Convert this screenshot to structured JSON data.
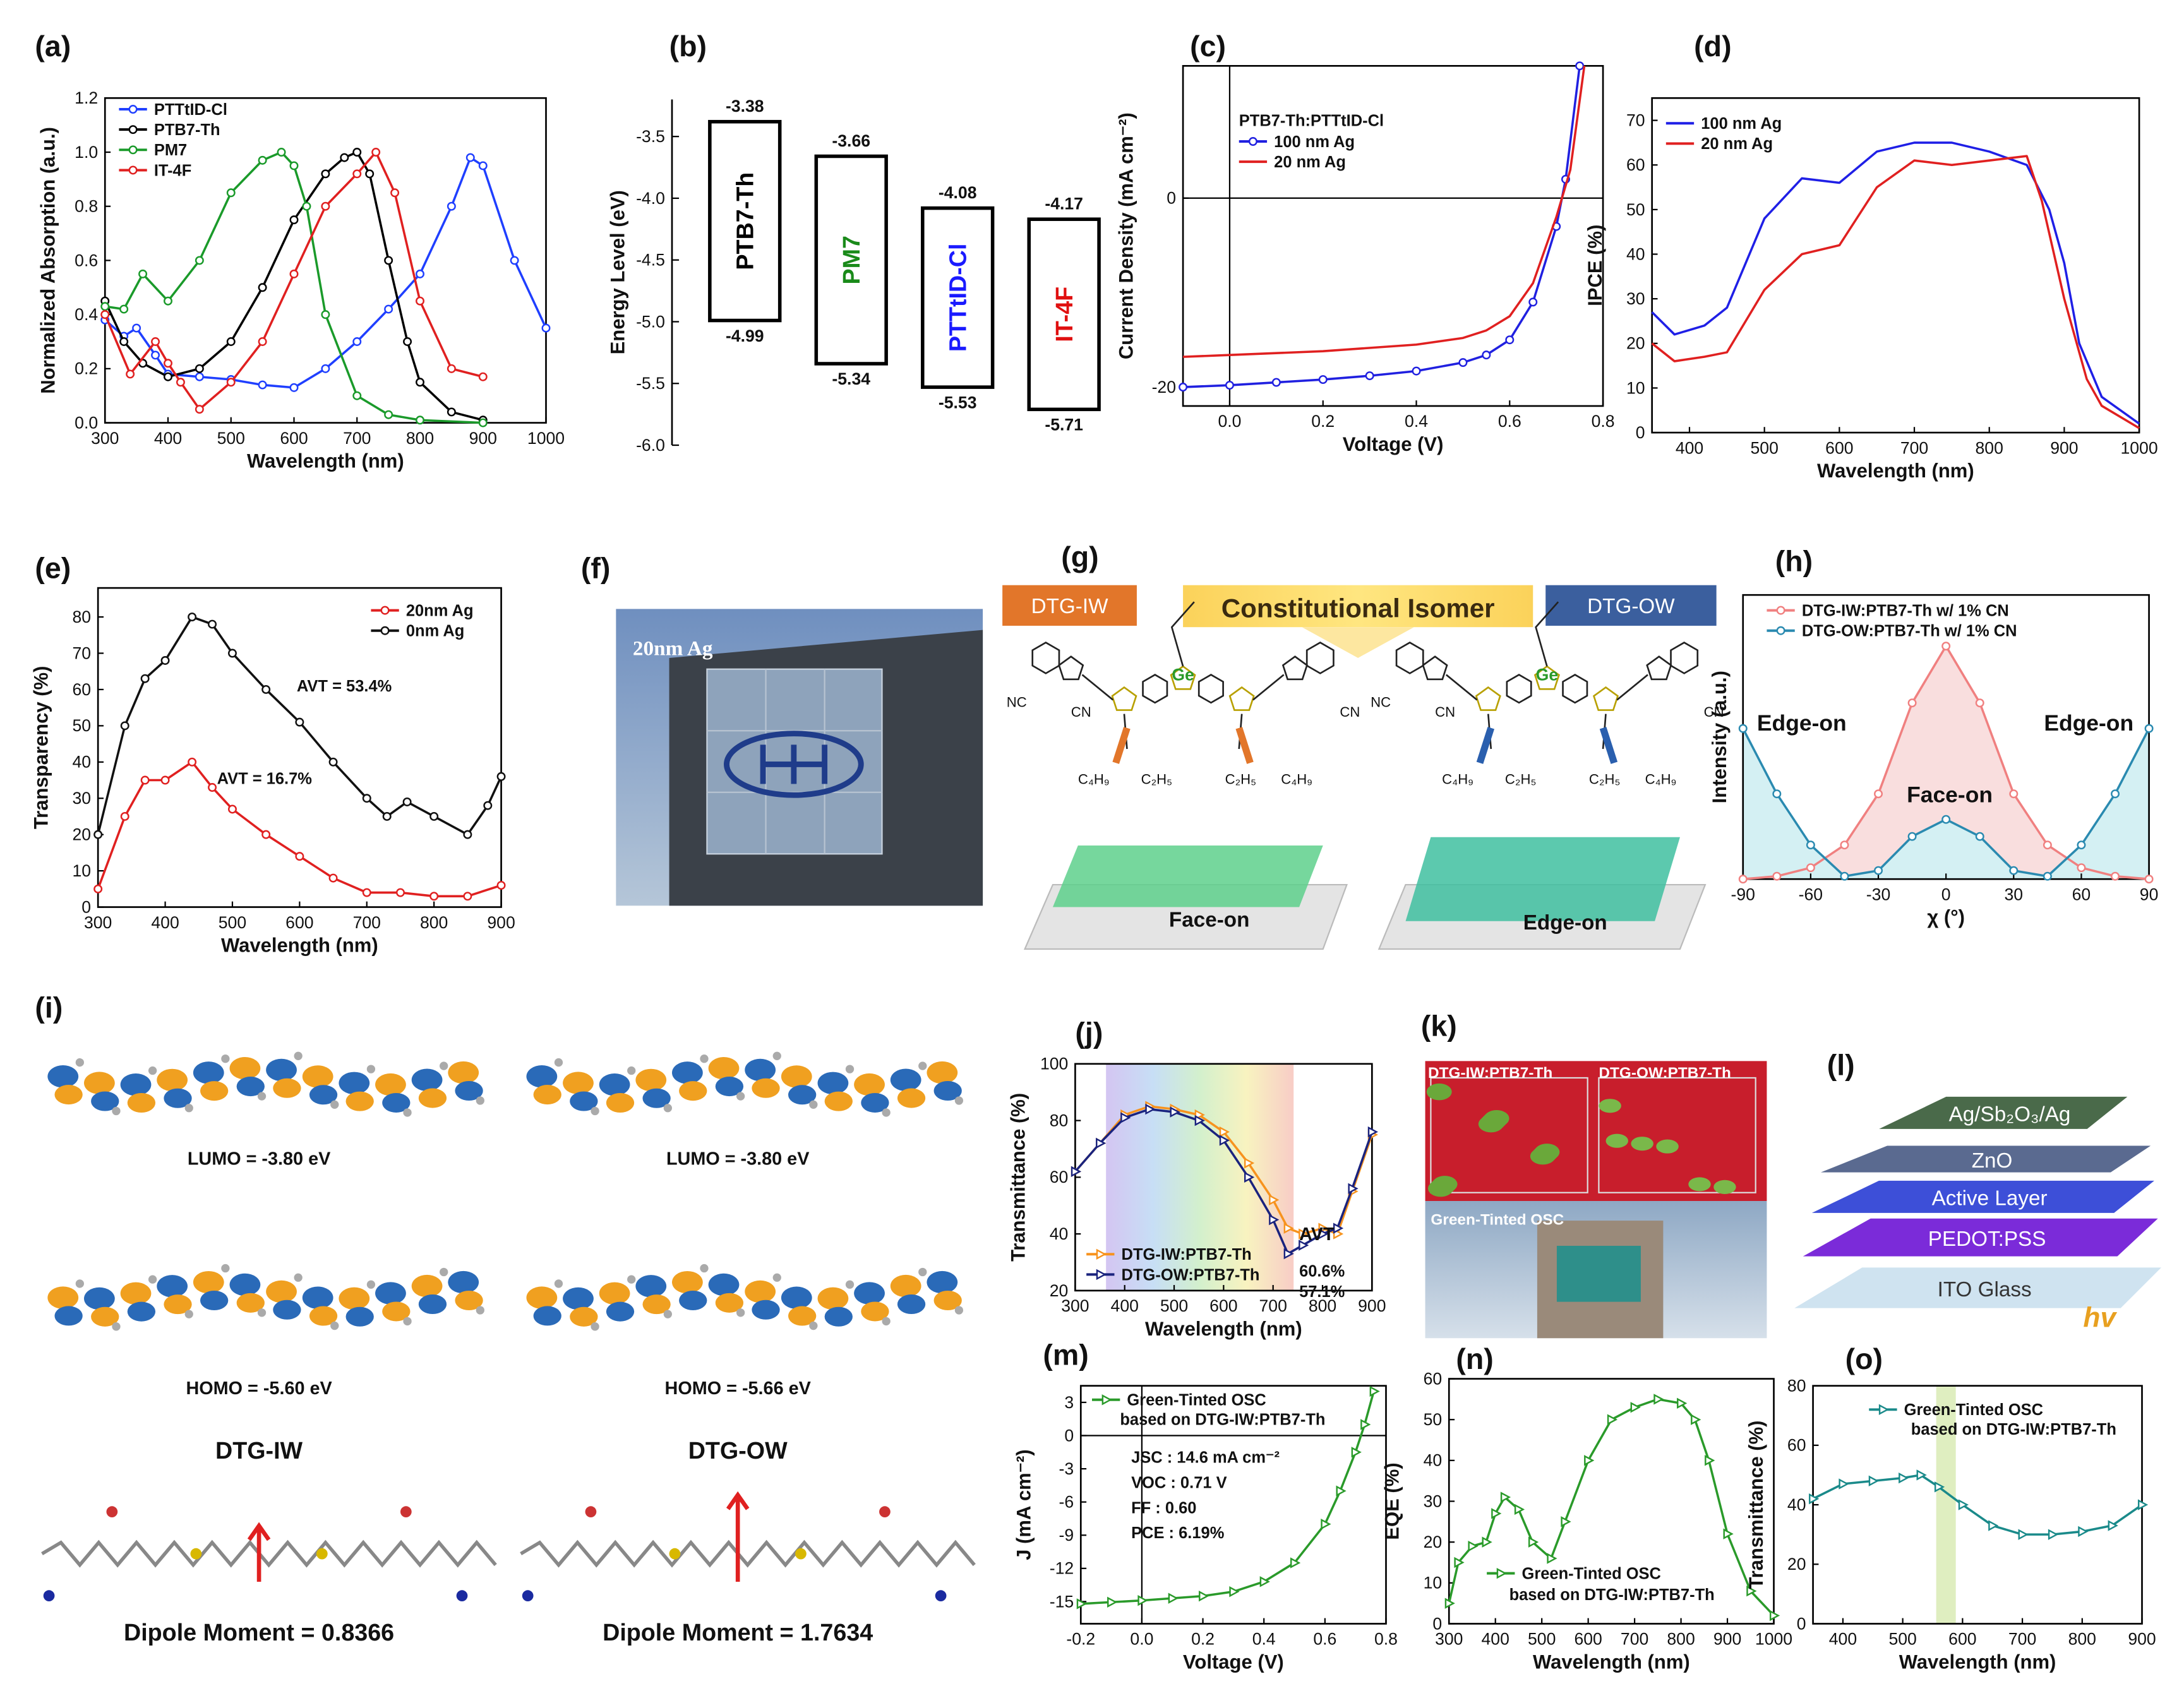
{
  "panel_labels": [
    "(a)",
    "(b)",
    "(c)",
    "(d)",
    "(e)",
    "(f)",
    "(g)",
    "(h)",
    "(i)",
    "(j)",
    "(k)",
    "(l)",
    "(m)",
    "(n)",
    "(o)"
  ],
  "chart_data": [
    {
      "type": "line",
      "xlabel": "Wavelength (nm)",
      "ylabel": "Normalized Absorption (a.u.)",
      "xlim": [
        300,
        1000
      ],
      "ylim": [
        0,
        1.2
      ],
      "xticks": [
        300,
        400,
        500,
        600,
        700,
        800,
        900,
        1000
      ],
      "yticks": [
        {
          "value": 0,
          "label": "0.0"
        },
        0.2,
        0.4,
        0.6,
        0.8,
        {
          "value": 1,
          "label": "1.0"
        },
        1.2
      ],
      "legend": "upper left",
      "series": [
        {
          "name": "PTTtID-Cl",
          "color": "#1f3fff",
          "marker": "circle",
          "x": [
            300,
            330,
            350,
            380,
            400,
            450,
            500,
            550,
            600,
            650,
            700,
            750,
            800,
            850,
            880,
            900,
            950,
            1000
          ],
          "values": [
            0.38,
            0.32,
            0.35,
            0.25,
            0.18,
            0.17,
            0.16,
            0.14,
            0.13,
            0.2,
            0.3,
            0.42,
            0.55,
            0.8,
            0.98,
            0.95,
            0.6,
            0.35
          ]
        },
        {
          "name": "PTB7-Th",
          "color": "#000000",
          "marker": "circle",
          "x": [
            300,
            330,
            360,
            400,
            450,
            500,
            550,
            600,
            650,
            680,
            700,
            720,
            750,
            780,
            800,
            850,
            900
          ],
          "values": [
            0.45,
            0.3,
            0.22,
            0.17,
            0.2,
            0.3,
            0.5,
            0.75,
            0.92,
            0.98,
            1.0,
            0.92,
            0.6,
            0.3,
            0.15,
            0.04,
            0.01
          ]
        },
        {
          "name": "PM7",
          "color": "#1a9a2a",
          "marker": "circle",
          "x": [
            300,
            330,
            360,
            400,
            450,
            500,
            550,
            580,
            600,
            620,
            650,
            700,
            750,
            800,
            900
          ],
          "values": [
            0.43,
            0.42,
            0.55,
            0.45,
            0.6,
            0.85,
            0.97,
            1.0,
            0.95,
            0.8,
            0.4,
            0.1,
            0.03,
            0.01,
            0.0
          ]
        },
        {
          "name": "IT-4F",
          "color": "#e02020",
          "marker": "circle",
          "x": [
            300,
            340,
            380,
            400,
            420,
            450,
            500,
            550,
            600,
            650,
            700,
            730,
            760,
            800,
            850,
            900
          ],
          "values": [
            0.4,
            0.18,
            0.3,
            0.22,
            0.15,
            0.05,
            0.15,
            0.3,
            0.55,
            0.8,
            0.92,
            1.0,
            0.85,
            0.45,
            0.2,
            0.17
          ]
        }
      ]
    },
    {
      "type": "energy-level",
      "ylabel": "Energy Level (eV)",
      "ylim": [
        -6.0,
        -3.2
      ],
      "yticks": [
        -3.5,
        {
          "value": -4,
          "label": "-4.0"
        },
        -4.5,
        {
          "value": -5,
          "label": "-5.0"
        },
        -5.5,
        {
          "value": -6,
          "label": "-6.0"
        }
      ],
      "categories": [
        "PTB7-Th",
        "PM7",
        "PTTtID-Cl",
        "IT-4F"
      ],
      "lumo": [
        -3.38,
        -3.66,
        -4.08,
        -4.17
      ],
      "homo": [
        -4.99,
        -5.34,
        -5.53,
        -5.71
      ],
      "colors": [
        "#000000",
        "#1a8a1a",
        "#1a1aff",
        "#e01010"
      ]
    },
    {
      "type": "line",
      "xlabel": "Voltage (V)",
      "ylabel": "Current Density (mA cm⁻²)",
      "xlim": [
        -0.1,
        0.8
      ],
      "ylim": [
        -22,
        14
      ],
      "xticks": [
        {
          "value": 0,
          "label": "0.0"
        },
        0.2,
        0.4,
        0.6,
        0.8
      ],
      "yticks": [
        -20,
        0
      ],
      "zero_lines": true,
      "legend": "upper left",
      "legend_title": "PTB7-Th:PTTtID-Cl",
      "series": [
        {
          "name": "100 nm Ag",
          "color": "#2020e0",
          "marker": "circle",
          "x": [
            -0.1,
            0,
            0.1,
            0.2,
            0.3,
            0.4,
            0.5,
            0.55,
            0.6,
            0.65,
            0.7,
            0.72,
            0.75
          ],
          "values": [
            -20,
            -19.8,
            -19.5,
            -19.2,
            -18.8,
            -18.3,
            -17.4,
            -16.6,
            -15,
            -11,
            -3,
            2,
            14
          ]
        },
        {
          "name": "20 nm Ag",
          "color": "#e02020",
          "marker": "none",
          "x": [
            -0.1,
            0,
            0.2,
            0.4,
            0.5,
            0.55,
            0.6,
            0.65,
            0.7,
            0.73,
            0.76
          ],
          "values": [
            -16.8,
            -16.6,
            -16.2,
            -15.5,
            -14.8,
            -14,
            -12.5,
            -9,
            -2,
            3,
            14
          ]
        }
      ]
    },
    {
      "type": "line",
      "xlabel": "Wavelength (nm)",
      "ylabel": "IPCE (%)",
      "xlim": [
        350,
        1000
      ],
      "ylim": [
        0,
        75
      ],
      "xticks": [
        400,
        500,
        600,
        700,
        800,
        900,
        1000
      ],
      "yticks": [
        0,
        10,
        20,
        30,
        40,
        50,
        60,
        70
      ],
      "legend": "upper left",
      "series": [
        {
          "name": "100 nm Ag",
          "color": "#1f1fe6",
          "marker": "none",
          "x": [
            350,
            380,
            420,
            450,
            500,
            550,
            600,
            650,
            700,
            750,
            800,
            850,
            880,
            900,
            920,
            950,
            1000
          ],
          "values": [
            27,
            22,
            24,
            28,
            48,
            57,
            56,
            63,
            65,
            65,
            63,
            60,
            50,
            38,
            20,
            8,
            2
          ]
        },
        {
          "name": "20 nm Ag",
          "color": "#e02020",
          "marker": "none",
          "x": [
            350,
            380,
            420,
            450,
            500,
            550,
            600,
            650,
            700,
            750,
            800,
            850,
            870,
            900,
            930,
            950,
            1000
          ],
          "values": [
            20,
            16,
            17,
            18,
            32,
            40,
            42,
            55,
            61,
            60,
            61,
            62,
            52,
            30,
            12,
            6,
            1
          ]
        }
      ]
    },
    {
      "type": "line",
      "xlabel": "Wavelength (nm)",
      "ylabel": "Transparency (%)",
      "xlim": [
        300,
        900
      ],
      "ylim": [
        0,
        88
      ],
      "xticks": [
        300,
        400,
        500,
        600,
        700,
        800,
        900
      ],
      "yticks": [
        0,
        10,
        20,
        30,
        40,
        50,
        60,
        70,
        80
      ],
      "legend": "upper right",
      "annotations": [
        "AVT = 53.4%",
        "AVT = 16.7%"
      ],
      "series": [
        {
          "name": "20nm Ag",
          "color": "#e02020",
          "marker": "circle",
          "x": [
            300,
            340,
            370,
            400,
            440,
            470,
            500,
            550,
            600,
            650,
            700,
            750,
            800,
            850,
            900
          ],
          "values": [
            5,
            25,
            35,
            35,
            40,
            33,
            27,
            20,
            14,
            8,
            4,
            4,
            3,
            3,
            6
          ]
        },
        {
          "name": "0nm Ag",
          "color": "#111111",
          "marker": "circle",
          "x": [
            300,
            340,
            370,
            400,
            440,
            470,
            500,
            550,
            600,
            650,
            700,
            730,
            760,
            800,
            850,
            880,
            900
          ],
          "values": [
            20,
            50,
            63,
            68,
            80,
            78,
            70,
            60,
            51,
            40,
            30,
            25,
            29,
            25,
            20,
            28,
            36
          ]
        }
      ]
    },
    {
      "type": "line",
      "xlabel": "χ (°)",
      "ylabel": "Intensity (a.u.)",
      "xlim": [
        -90,
        90
      ],
      "ylim": [
        0,
        1
      ],
      "xticks": [
        -90,
        -60,
        -30,
        0,
        30,
        60,
        90
      ],
      "yticks": [],
      "legend": "upper left",
      "annotations": [
        "Edge-on",
        "Face-on",
        "Edge-on"
      ],
      "series": [
        {
          "name": "DTG-IW:PTB7-Th w/ 1% CN",
          "color": "#f08080",
          "fill": "#f9dede",
          "marker": "circle",
          "x": [
            -90,
            -75,
            -60,
            -45,
            -30,
            -15,
            0,
            15,
            30,
            45,
            60,
            75,
            90
          ],
          "values": [
            0.0,
            0.01,
            0.04,
            0.12,
            0.3,
            0.62,
            0.82,
            0.62,
            0.3,
            0.12,
            0.04,
            0.01,
            0.0
          ]
        },
        {
          "name": "DTG-OW:PTB7-Th w/ 1% CN",
          "color": "#2a8ab0",
          "fill": "#d4f0f3",
          "marker": "circle",
          "x": [
            -90,
            -75,
            -60,
            -45,
            -30,
            -15,
            0,
            15,
            30,
            45,
            60,
            75,
            90
          ],
          "values": [
            0.53,
            0.3,
            0.12,
            0.01,
            0.03,
            0.15,
            0.21,
            0.15,
            0.03,
            0.01,
            0.12,
            0.3,
            0.53
          ]
        }
      ]
    },
    {
      "type": "line",
      "xlabel": "Wavelength (nm)",
      "ylabel": "Transmittance (%)",
      "xlim": [
        300,
        900
      ],
      "ylim": [
        20,
        100
      ],
      "xticks": [
        300,
        400,
        500,
        600,
        700,
        800,
        900
      ],
      "yticks": [
        20,
        40,
        60,
        80,
        100
      ],
      "legend": "lower left",
      "legend_note": "AVT",
      "series": [
        {
          "name": "DTG-IW:PTB7-Th",
          "note": "60.6%",
          "color": "#f7931e",
          "marker": "triangle",
          "x": [
            300,
            350,
            400,
            450,
            500,
            550,
            600,
            650,
            700,
            730,
            760,
            800,
            830,
            860,
            900
          ],
          "values": [
            62,
            72,
            82,
            85,
            84,
            82,
            76,
            65,
            52,
            42,
            40,
            42,
            40,
            55,
            75
          ]
        },
        {
          "name": "DTG-OW:PTB7-Th",
          "note": "57.1%",
          "color": "#1a237e",
          "marker": "triangle",
          "x": [
            300,
            350,
            400,
            450,
            500,
            550,
            600,
            650,
            700,
            730,
            760,
            800,
            830,
            860,
            900
          ],
          "values": [
            62,
            72,
            81,
            84,
            83,
            80,
            73,
            60,
            45,
            33,
            36,
            40,
            42,
            56,
            76
          ]
        }
      ]
    },
    {
      "type": "line",
      "xlabel": "Voltage (V)",
      "ylabel": "J (mA cm⁻²)",
      "xlim": [
        -0.2,
        0.8
      ],
      "ylim": [
        -17,
        4.5
      ],
      "xticks": [
        -0.2,
        {
          "value": 0,
          "label": "0.0"
        },
        0.2,
        0.4,
        0.6,
        0.8
      ],
      "yticks": [
        -15,
        -12,
        -9,
        -6,
        -3,
        0,
        3
      ],
      "zero_lines": true,
      "legend": "upper left",
      "annotations": [
        "based on DTG-IW:PTB7-Th",
        "JSC : 14.6 mA cm⁻²",
        "VOC : 0.71 V",
        "FF : 0.60",
        "PCE : 6.19%"
      ],
      "series": [
        {
          "name": "Green-Tinted OSC",
          "color": "#2a9a2a",
          "marker": "triangle",
          "x": [
            -0.2,
            -0.1,
            0,
            0.1,
            0.2,
            0.3,
            0.4,
            0.5,
            0.6,
            0.65,
            0.7,
            0.73,
            0.76
          ],
          "values": [
            -15.2,
            -15.05,
            -14.9,
            -14.7,
            -14.5,
            -14.1,
            -13.2,
            -11.5,
            -8,
            -5,
            -1.5,
            1,
            4
          ]
        }
      ]
    },
    {
      "type": "line",
      "xlabel": "Wavelength (nm)",
      "ylabel": "EQE (%)",
      "xlim": [
        300,
        1000
      ],
      "ylim": [
        0,
        60
      ],
      "xticks": [
        300,
        400,
        500,
        600,
        700,
        800,
        900,
        1000
      ],
      "yticks": [
        0,
        10,
        20,
        30,
        40,
        50,
        60
      ],
      "legend": "lower left",
      "annotations": [
        "based on DTG-IW:PTB7-Th"
      ],
      "series": [
        {
          "name": "Green-Tinted OSC",
          "color": "#2a9a2a",
          "marker": "triangle",
          "x": [
            300,
            320,
            350,
            380,
            400,
            420,
            450,
            480,
            520,
            550,
            600,
            650,
            700,
            750,
            800,
            830,
            860,
            900,
            950,
            1000
          ],
          "values": [
            5,
            15,
            19,
            20,
            27,
            31,
            28,
            20,
            16,
            25,
            40,
            50,
            53,
            55,
            54,
            50,
            40,
            22,
            8,
            2
          ]
        }
      ]
    },
    {
      "type": "line",
      "xlabel": "Wavelength (nm)",
      "ylabel": "Transmittance (%)",
      "xlim": [
        350,
        900
      ],
      "ylim": [
        0,
        80
      ],
      "xticks": [
        400,
        500,
        600,
        700,
        800,
        900
      ],
      "yticks": [
        0,
        20,
        40,
        60,
        80
      ],
      "legend": "upper left",
      "annotations": [
        "based on DTG-IW:PTB7-Th"
      ],
      "series": [
        {
          "name": "Green-Tinted OSC",
          "color": "#1a8a8a",
          "marker": "triangle",
          "x": [
            350,
            400,
            450,
            500,
            530,
            560,
            600,
            650,
            700,
            750,
            800,
            850,
            900
          ],
          "values": [
            42,
            47,
            48,
            49,
            50,
            46,
            40,
            33,
            30,
            30,
            31,
            33,
            40
          ]
        }
      ]
    }
  ],
  "photo_f": {
    "caption": "20nm Ag"
  },
  "schematic_g": {
    "left": "DTG-IW",
    "center": "Constitutional Isomer",
    "right": "DTG-OW",
    "left_film": "Face-on",
    "right_film": "Edge-on",
    "atoms_left": [
      "NC",
      "CN",
      "Ge",
      "CN",
      "C₄H₉",
      "C₂H₅",
      "C₂H₅",
      "C₄H₉"
    ],
    "atoms_right": [
      "NC",
      "CN",
      "Ge",
      "CN",
      "C₄H₉",
      "C₂H₅",
      "C₂H₅",
      "C₄H₉"
    ]
  },
  "orbitals_i": {
    "left": {
      "lumo": "LUMO = -3.80 eV",
      "homo": "HOMO = -5.60 eV",
      "name": "DTG-IW",
      "dipole": "Dipole Moment = 0.8366"
    },
    "right": {
      "lumo": "LUMO = -3.80 eV",
      "homo": "HOMO = -5.66 eV",
      "name": "DTG-OW",
      "dipole": "Dipole Moment = 1.7634"
    }
  },
  "photo_k": {
    "left": "DTG-IW:PTB7-Th",
    "right": "DTG-OW:PTB7-Th",
    "bottom": "Green-Tinted OSC"
  },
  "device_l": {
    "layers": [
      "ITO Glass",
      "PEDOT:PSS",
      "Active Layer",
      "ZnO",
      "Ag/Sb₂O₃/Ag"
    ],
    "light": "hv"
  }
}
